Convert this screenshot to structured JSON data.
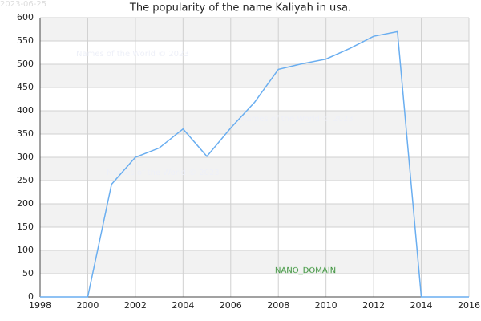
{
  "chart_data": {
    "type": "line",
    "title": "The popularity of the name Kaliyah in usa.",
    "date": "2023-06-25",
    "watermarks": [
      "Names of the World © 2023",
      "Names of the World © 2023",
      "Names of the World © 2023"
    ],
    "annotation": "NANO_DOMAIN",
    "x": [
      1998,
      1999,
      2000,
      2001,
      2002,
      2003,
      2004,
      2005,
      2006,
      2007,
      2008,
      2009,
      2010,
      2011,
      2012,
      2013,
      2014,
      2015,
      2016
    ],
    "series": [
      {
        "name": "Kaliyah",
        "color": "#6aaef0",
        "values": [
          0,
          0,
          0,
          242,
          300,
          320,
          361,
          302,
          363,
          418,
          489,
          501,
          511,
          534,
          560,
          570,
          0,
          0,
          0
        ]
      }
    ],
    "xlim": [
      1998,
      2016
    ],
    "xticks": [
      1998,
      2000,
      2002,
      2004,
      2006,
      2008,
      2010,
      2012,
      2014,
      2016
    ],
    "ylim": [
      0,
      600
    ],
    "yticks": [
      0,
      50,
      100,
      150,
      200,
      250,
      300,
      350,
      400,
      450,
      500,
      550,
      600
    ],
    "grid": true
  }
}
